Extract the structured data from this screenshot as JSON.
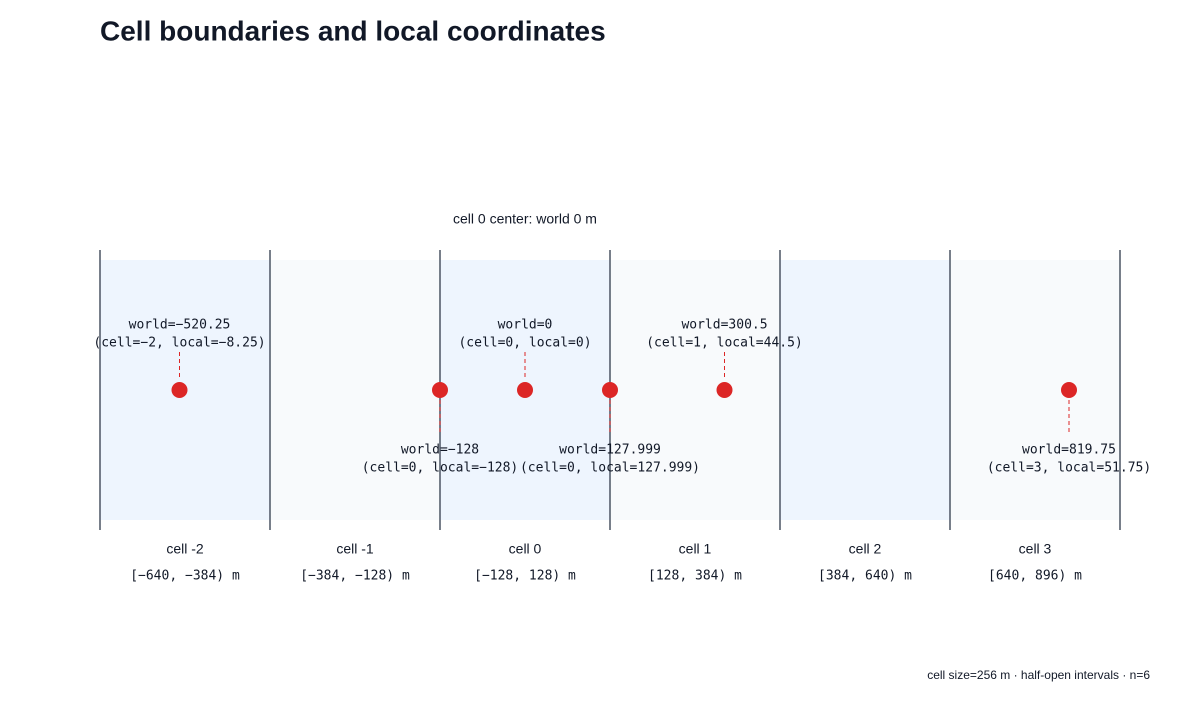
{
  "title": "Cell boundaries and local coordinates",
  "annotation": "cell 0 center: world 0 m",
  "cells": [
    {
      "label": "cell -2",
      "interval": "[−640, −384) m"
    },
    {
      "label": "cell -1",
      "interval": "[−384, −128) m"
    },
    {
      "label": "cell 0",
      "interval": "[−128, 128) m"
    },
    {
      "label": "cell 1",
      "interval": "[128, 384) m"
    },
    {
      "label": "cell 2",
      "interval": "[384, 640) m"
    },
    {
      "label": "cell 3",
      "interval": "[640, 896) m"
    }
  ],
  "points": [
    {
      "world": "world=−520.25",
      "detail": "(cell=−2, local=−8.25)"
    },
    {
      "world": "world=−128",
      "detail": "(cell=0, local=−128)"
    },
    {
      "world": "world=0",
      "detail": "(cell=0, local=0)"
    },
    {
      "world": "world=127.999",
      "detail": "(cell=0, local=127.999)"
    },
    {
      "world": "world=300.5",
      "detail": "(cell=1, local=44.5)"
    },
    {
      "world": "world=819.75",
      "detail": "(cell=3, local=51.75)"
    }
  ],
  "footer": "cell size=256 m · half-open intervals · n=6"
}
